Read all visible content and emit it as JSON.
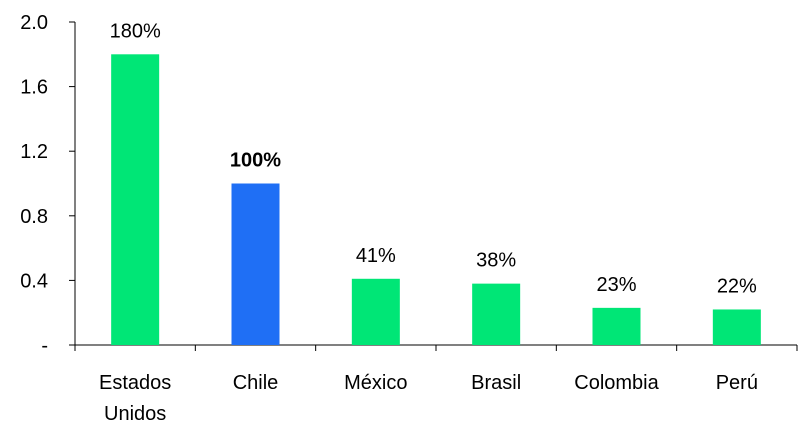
{
  "chart_data": {
    "type": "bar",
    "categories": [
      "Estados Unidos",
      "Chile",
      "México",
      "Brasil",
      "Colombia",
      "Perú"
    ],
    "category_label_lines": [
      [
        "Estados",
        "Unidos"
      ],
      [
        "Chile"
      ],
      [
        "México"
      ],
      [
        "Brasil"
      ],
      [
        "Colombia"
      ],
      [
        "Perú"
      ]
    ],
    "values": [
      1.8,
      1.0,
      0.41,
      0.38,
      0.23,
      0.22
    ],
    "data_labels": [
      "180%",
      "100%",
      "41%",
      "38%",
      "23%",
      "22%"
    ],
    "bold_labels": [
      false,
      true,
      false,
      false,
      false,
      false
    ],
    "bar_colors": [
      "#00e676",
      "#1f6ff5",
      "#00e676",
      "#00e676",
      "#00e676",
      "#00e676"
    ],
    "ylim": [
      0,
      2.0
    ],
    "yticks": [
      0,
      0.4,
      0.8,
      1.2,
      1.6,
      2.0
    ],
    "ytick_labels": [
      "-",
      "0.4",
      "0.8",
      "1.2",
      "1.6",
      "2.0"
    ],
    "grid": false,
    "legend": "none",
    "title": "",
    "xlabel": "",
    "ylabel": ""
  }
}
